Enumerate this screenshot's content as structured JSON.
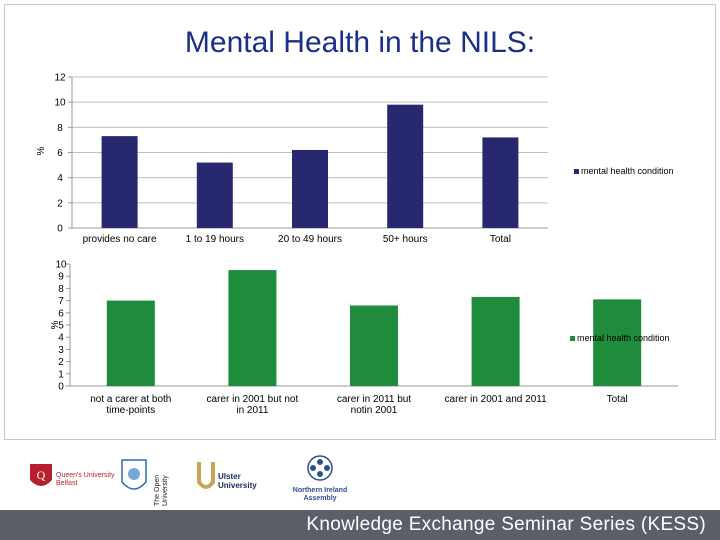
{
  "page": {
    "title": "Mental Health in the NILS:"
  },
  "chart_data": [
    {
      "type": "bar",
      "title": "",
      "ylabel": "%",
      "xlabel": "",
      "ylim": [
        0,
        12
      ],
      "yticks": [
        0,
        2,
        4,
        6,
        8,
        10,
        12
      ],
      "grid": true,
      "legend": "right",
      "color": "#27286f",
      "categories": [
        "provides no care",
        "1 to 19 hours",
        "20 to 49 hours",
        "50+ hours",
        "Total"
      ],
      "series": [
        {
          "name": "mental health condition",
          "values": [
            7.3,
            5.2,
            6.2,
            9.8,
            7.2
          ]
        }
      ]
    },
    {
      "type": "bar",
      "title": "",
      "ylabel": "%",
      "xlabel": "",
      "ylim": [
        0,
        10
      ],
      "yticks": [
        0,
        1,
        2,
        3,
        4,
        5,
        6,
        7,
        8,
        9,
        10
      ],
      "grid": false,
      "legend": "right",
      "color": "#1f8c3b",
      "categories": [
        "not a carer at both time-points",
        "carer in 2001 but not in 2011",
        "carer in 2011 but notin 2001",
        "carer in 2001 and 2011",
        "Total"
      ],
      "series": [
        {
          "name": "mental health condition",
          "values": [
            7.0,
            9.5,
            6.6,
            7.3,
            7.1
          ]
        }
      ]
    }
  ],
  "logos": [
    {
      "name": "Queen's University Belfast",
      "lines": [
        "Queen's University",
        "Belfast"
      ]
    },
    {
      "name": "The Open University",
      "lines": [
        "The Open",
        "University"
      ]
    },
    {
      "name": "Ulster University",
      "lines": [
        "Ulster",
        "University"
      ]
    },
    {
      "name": "Northern Ireland Assembly",
      "lines": [
        "Northern Ireland",
        "Assembly"
      ]
    }
  ],
  "footer": {
    "text": "Knowledge Exchange Seminar Series (KESS)"
  },
  "colors": {
    "title": "#1a2f86",
    "chart1_bars": "#27286f",
    "chart2_bars": "#1f8c3b",
    "footer_bg": "#5c5f67"
  }
}
